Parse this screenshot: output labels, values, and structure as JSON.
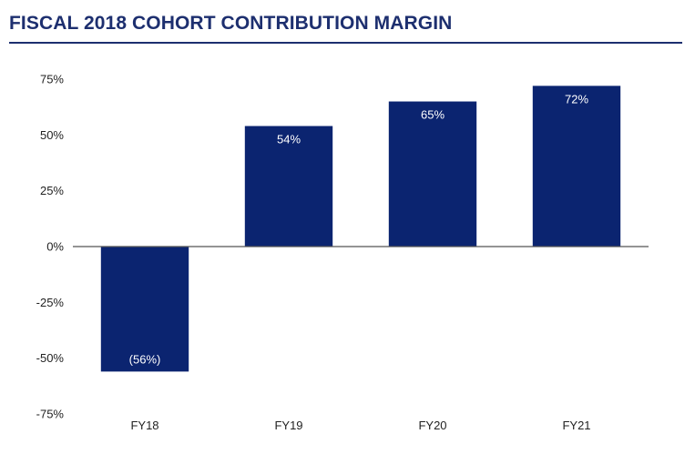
{
  "chart_data": {
    "type": "bar",
    "title": "FISCAL 2018 COHORT CONTRIBUTION MARGIN",
    "categories": [
      "FY18",
      "FY19",
      "FY20",
      "FY21"
    ],
    "values": [
      -56,
      54,
      65,
      72
    ],
    "data_labels": [
      "(56%)",
      "54%",
      "65%",
      "72%"
    ],
    "y_ticks": [
      75,
      50,
      25,
      0,
      -25,
      -50,
      -75
    ],
    "y_tick_labels": [
      "75%",
      "50%",
      "25%",
      "0%",
      "-25%",
      "-50%",
      "-75%"
    ],
    "ylim": [
      -75,
      75
    ],
    "xlabel": "",
    "ylabel": "",
    "grid": false,
    "legend": "none",
    "bar_color": "#0b2470",
    "axis_color": "#555555"
  }
}
